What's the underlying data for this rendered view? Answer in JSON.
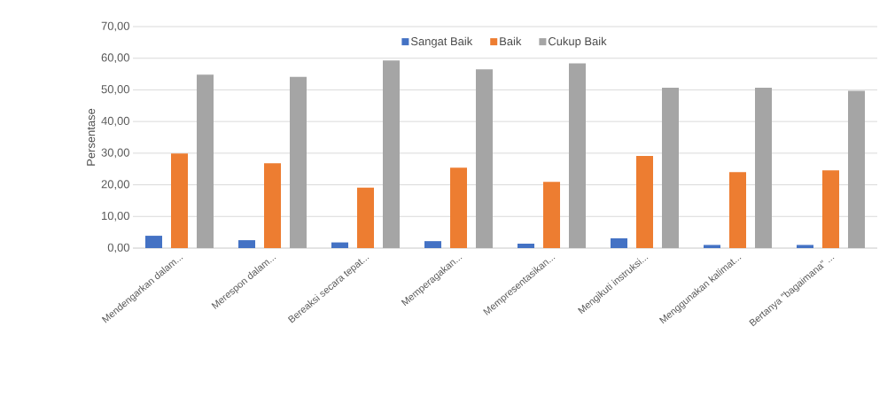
{
  "chart_data": {
    "type": "bar",
    "ylabel": "Persentase",
    "categories": [
      "Mendengarkan dalam...",
      "Merespon dalam...",
      "Bereaksi secara tepat...",
      "Memperagakan...",
      "Mempresentasikan...",
      "Mengikuti instruksi...",
      "Menggunakan kalimat...",
      "Bertanya \"bagaimana\" ..."
    ],
    "series": [
      {
        "name": "Sangat Baik",
        "color": "#4472c4",
        "values": [
          3.9,
          2.5,
          1.8,
          2.2,
          1.4,
          3.1,
          1.0,
          1.0
        ]
      },
      {
        "name": "Baik",
        "color": "#ed7d31",
        "values": [
          29.9,
          26.8,
          19.1,
          25.4,
          20.9,
          29.1,
          24.0,
          24.6
        ]
      },
      {
        "name": "Cukup Baik",
        "color": "#a5a5a5",
        "values": [
          54.8,
          54.1,
          59.3,
          56.5,
          58.4,
          50.7,
          50.7,
          49.7
        ]
      }
    ],
    "ylim": [
      0,
      70
    ],
    "yticks": [
      {
        "value": 0,
        "label": "0,00"
      },
      {
        "value": 10,
        "label": "10,00"
      },
      {
        "value": 20,
        "label": "20,00"
      },
      {
        "value": 30,
        "label": "30,00"
      },
      {
        "value": 40,
        "label": "40,00"
      },
      {
        "value": 50,
        "label": "50,00"
      },
      {
        "value": 60,
        "label": "60,00"
      },
      {
        "value": 70,
        "label": "70,00"
      }
    ],
    "grid": "y",
    "legend": "top"
  }
}
